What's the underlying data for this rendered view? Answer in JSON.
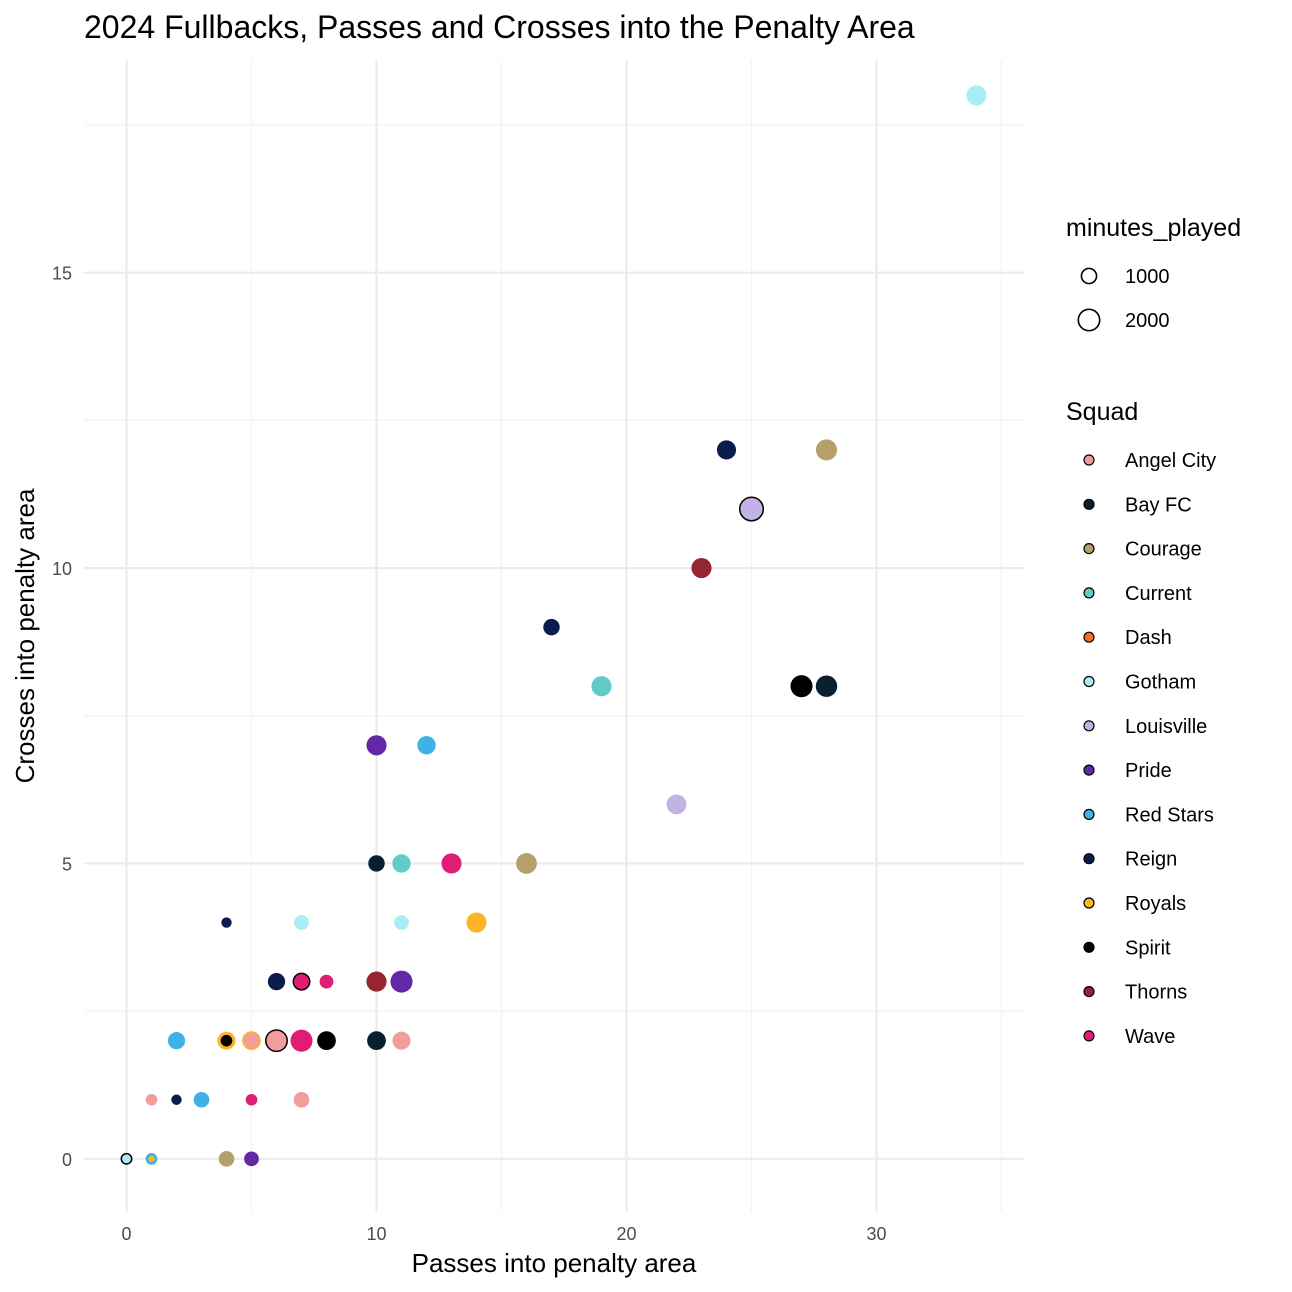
{
  "chart_data": {
    "type": "scatter",
    "title": "2024 Fullbacks, Passes and Crosses into the Penalty Area",
    "xlabel": "Passes into penalty area",
    "ylabel": "Crosses into penalty area",
    "xlim": [
      -1.7,
      35.9
    ],
    "ylim": [
      -0.9,
      18.6
    ],
    "x_ticks": [
      0,
      10,
      20,
      30
    ],
    "y_ticks": [
      0,
      5,
      10,
      15
    ],
    "grid": true,
    "legend_position": "right",
    "size_legend": {
      "title": "minutes_played",
      "entries": [
        {
          "label": "1000",
          "value": 1000
        },
        {
          "label": "2000",
          "value": 2000
        }
      ]
    },
    "color_legend": {
      "title": "Squad",
      "entries": [
        {
          "name": "Angel City",
          "color": "#F19E9A"
        },
        {
          "name": "Bay FC",
          "color": "#0A1F2E"
        },
        {
          "name": "Courage",
          "color": "#B5A06B"
        },
        {
          "name": "Current",
          "color": "#62CBC9"
        },
        {
          "name": "Dash",
          "color": "#F36F21"
        },
        {
          "name": "Gotham",
          "color": "#A8EEF7"
        },
        {
          "name": "Louisville",
          "color": "#C3B2E3"
        },
        {
          "name": "Pride",
          "color": "#6228A5"
        },
        {
          "name": "Red Stars",
          "color": "#3EB2E4"
        },
        {
          "name": "Reign",
          "color": "#0A1C4C"
        },
        {
          "name": "Royals",
          "color": "#FDB528"
        },
        {
          "name": "Spirit",
          "color": "#000000"
        },
        {
          "name": "Thorns",
          "color": "#952530"
        },
        {
          "name": "Wave",
          "color": "#E11C74"
        }
      ]
    },
    "points": [
      {
        "squad": "Gotham",
        "x": 34,
        "y": 18,
        "minutes": 1500
      },
      {
        "squad": "Courage",
        "x": 28,
        "y": 12,
        "minutes": 1650
      },
      {
        "squad": "Reign",
        "x": 24,
        "y": 12,
        "minutes": 1350
      },
      {
        "squad": "Louisville",
        "x": 25,
        "y": 11,
        "minutes": 2050,
        "outline": true
      },
      {
        "squad": "Thorns",
        "x": 23,
        "y": 10,
        "minutes": 1500
      },
      {
        "squad": "Reign",
        "x": 17,
        "y": 9,
        "minutes": 1000
      },
      {
        "squad": "Current",
        "x": 19,
        "y": 8,
        "minutes": 1500
      },
      {
        "squad": "Spirit",
        "x": 27,
        "y": 8,
        "minutes": 1800
      },
      {
        "squad": "Bay FC",
        "x": 28,
        "y": 8,
        "minutes": 1700
      },
      {
        "squad": "Pride",
        "x": 10,
        "y": 7,
        "minutes": 1500
      },
      {
        "squad": "Red Stars",
        "x": 12,
        "y": 7,
        "minutes": 1250
      },
      {
        "squad": "Louisville",
        "x": 22,
        "y": 6,
        "minutes": 1450
      },
      {
        "squad": "Bay FC",
        "x": 10,
        "y": 5,
        "minutes": 1000
      },
      {
        "squad": "Current",
        "x": 11,
        "y": 5,
        "minutes": 1250
      },
      {
        "squad": "Wave",
        "x": 13,
        "y": 5,
        "minutes": 1500
      },
      {
        "squad": "Courage",
        "x": 16,
        "y": 5,
        "minutes": 1600
      },
      {
        "squad": "Reign",
        "x": 4,
        "y": 4,
        "minutes": 400
      },
      {
        "squad": "Gotham",
        "x": 7,
        "y": 4,
        "minutes": 800
      },
      {
        "squad": "Gotham",
        "x": 11,
        "y": 4,
        "minutes": 800
      },
      {
        "squad": "Royals",
        "x": 14,
        "y": 4,
        "minutes": 1500
      },
      {
        "squad": "Reign",
        "x": 6,
        "y": 3,
        "minutes": 1100
      },
      {
        "squad": "Wave",
        "x": 7,
        "y": 3,
        "minutes": 1000,
        "outline": true
      },
      {
        "squad": "Wave",
        "x": 8,
        "y": 3,
        "minutes": 700
      },
      {
        "squad": "Thorns",
        "x": 10,
        "y": 3,
        "minutes": 1500
      },
      {
        "squad": "Pride",
        "x": 11,
        "y": 3,
        "minutes": 1800
      },
      {
        "squad": "Red Stars",
        "x": 2,
        "y": 2,
        "minutes": 1100
      },
      {
        "squad": "Royals",
        "x": 4,
        "y": 2,
        "minutes": 1200
      },
      {
        "squad": "Spirit",
        "x": 4,
        "y": 2,
        "minutes": 500
      },
      {
        "squad": "Royals",
        "x": 5,
        "y": 2,
        "minutes": 1300
      },
      {
        "squad": "Angel City",
        "x": 5,
        "y": 2,
        "minutes": 900
      },
      {
        "squad": "Angel City",
        "x": 6,
        "y": 2,
        "minutes": 1700,
        "outline": true
      },
      {
        "squad": "Wave",
        "x": 7,
        "y": 2,
        "minutes": 1800
      },
      {
        "squad": "Spirit",
        "x": 8,
        "y": 2,
        "minutes": 1300
      },
      {
        "squad": "Bay FC",
        "x": 10,
        "y": 2,
        "minutes": 1300
      },
      {
        "squad": "Angel City",
        "x": 11,
        "y": 2,
        "minutes": 1200
      },
      {
        "squad": "Angel City",
        "x": 1,
        "y": 1,
        "minutes": 500
      },
      {
        "squad": "Reign",
        "x": 2,
        "y": 1,
        "minutes": 400
      },
      {
        "squad": "Red Stars",
        "x": 3,
        "y": 1,
        "minutes": 900
      },
      {
        "squad": "Wave",
        "x": 5,
        "y": 1,
        "minutes": 500
      },
      {
        "squad": "Angel City",
        "x": 7,
        "y": 1,
        "minutes": 900
      },
      {
        "squad": "Gotham",
        "x": 0,
        "y": 0,
        "minutes": 400,
        "outline": true
      },
      {
        "squad": "Red Stars",
        "x": 1,
        "y": 0,
        "minutes": 500
      },
      {
        "squad": "Royals",
        "x": 1,
        "y": 0,
        "minutes": 150
      },
      {
        "squad": "Courage",
        "x": 4,
        "y": 0,
        "minutes": 900
      },
      {
        "squad": "Pride",
        "x": 5,
        "y": 0,
        "minutes": 800
      }
    ]
  }
}
